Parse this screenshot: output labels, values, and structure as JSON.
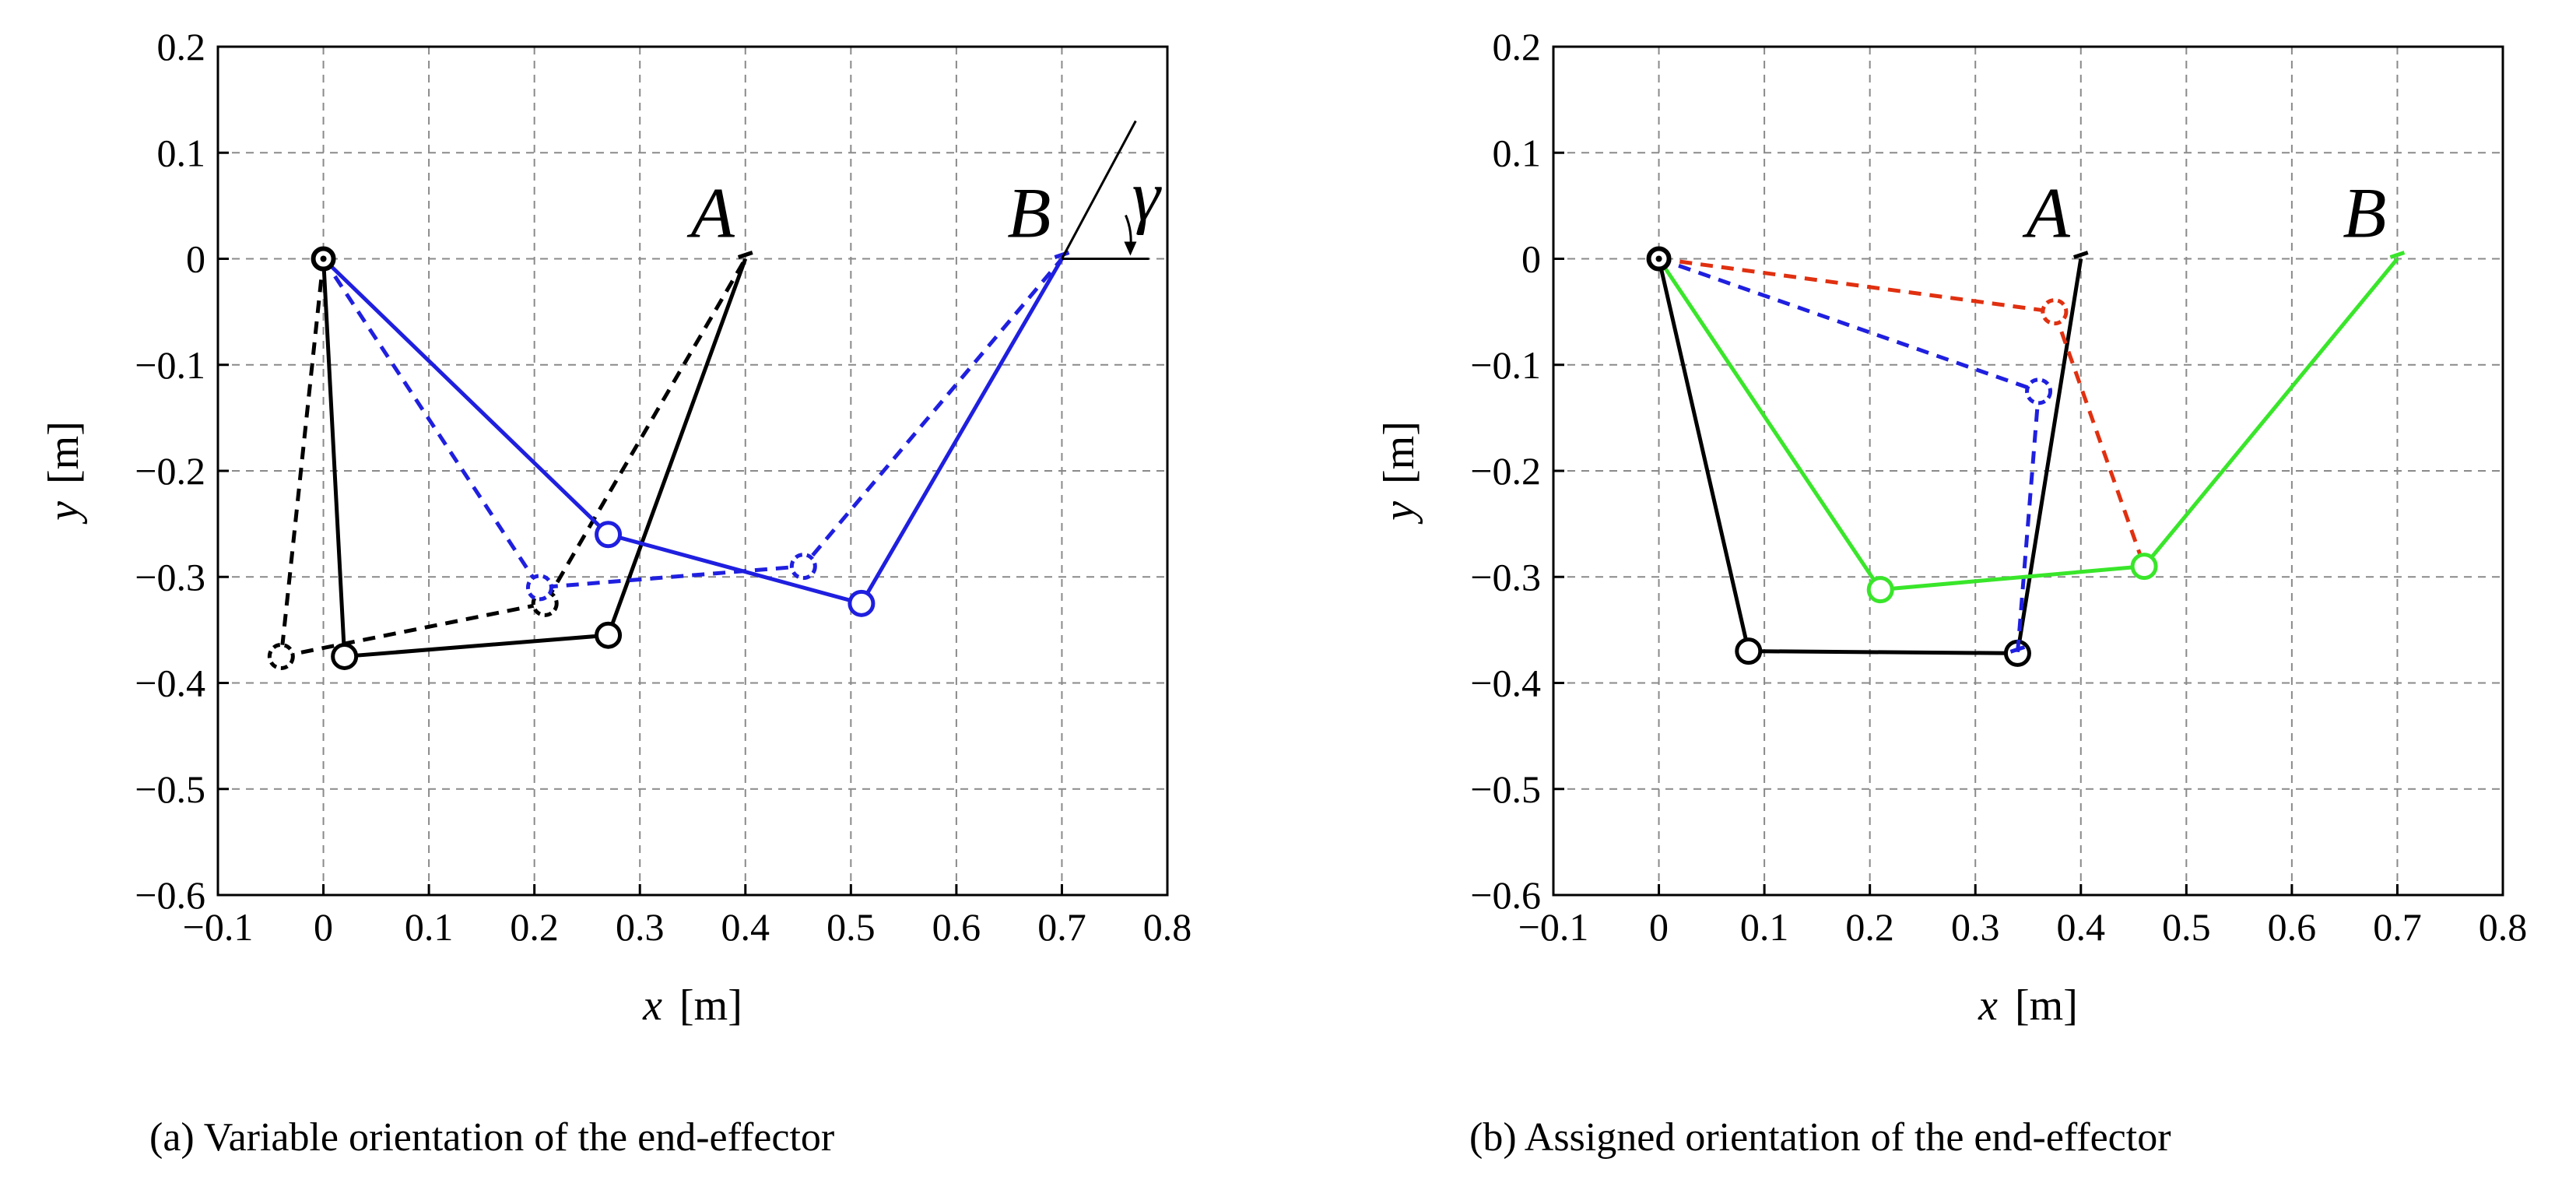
{
  "figure": {
    "caption_a": "(a)  Variable orientation of the end-effector",
    "caption_b": "(b)  Assigned orientation of the end-effector"
  },
  "chart_data": [
    {
      "type": "line",
      "panel": "a",
      "xlabel_var": "x",
      "xlabel_unit": "[m]",
      "ylabel_var": "y",
      "ylabel_unit": "[m]",
      "xlim": [
        -0.1,
        0.8
      ],
      "ylim": [
        -0.6,
        0.2
      ],
      "xticks": [
        -0.1,
        0,
        0.1,
        0.2,
        0.3,
        0.4,
        0.5,
        0.6,
        0.7,
        0.8
      ],
      "yticks": [
        -0.6,
        -0.5,
        -0.4,
        -0.3,
        -0.2,
        -0.1,
        0,
        0.1,
        0.2
      ],
      "xtick_labels": [
        "−0.1",
        "0",
        "0.1",
        "0.2",
        "0.3",
        "0.4",
        "0.5",
        "0.6",
        "0.7",
        "0.8"
      ],
      "ytick_labels": [
        "−0.6",
        "−0.5",
        "−0.4",
        "−0.3",
        "−0.2",
        "−0.1",
        "0",
        "0.1",
        "0.2"
      ],
      "grid": true,
      "series": [
        {
          "name": "black-dashed",
          "color": "#000000",
          "dashed": true,
          "x": [
            0,
            -0.04,
            0.21,
            0.4
          ],
          "y": [
            0,
            -0.375,
            -0.325,
            0
          ]
        },
        {
          "name": "black-solid",
          "color": "#000000",
          "dashed": false,
          "x": [
            0,
            0.02,
            0.27,
            0.4
          ],
          "y": [
            0,
            -0.375,
            -0.355,
            0
          ]
        },
        {
          "name": "blue-dashed",
          "color": "#1f1fe0",
          "dashed": true,
          "x": [
            0,
            0.205,
            0.455,
            0.7
          ],
          "y": [
            0,
            -0.31,
            -0.29,
            0
          ]
        },
        {
          "name": "blue-solid",
          "color": "#1f1fe0",
          "dashed": false,
          "x": [
            0,
            0.27,
            0.51,
            0.7
          ],
          "y": [
            0,
            -0.26,
            -0.325,
            0
          ]
        }
      ],
      "annotations": [
        {
          "text": "A",
          "x": 0.4,
          "y": 0
        },
        {
          "text": "B",
          "x": 0.7,
          "y": 0
        },
        {
          "text": "γ",
          "x": 0.7,
          "y": 0
        }
      ]
    },
    {
      "type": "line",
      "panel": "b",
      "xlabel_var": "x",
      "xlabel_unit": "[m]",
      "ylabel_var": "y",
      "ylabel_unit": "[m]",
      "xlim": [
        -0.1,
        0.8
      ],
      "ylim": [
        -0.6,
        0.2
      ],
      "xticks": [
        -0.1,
        0,
        0.1,
        0.2,
        0.3,
        0.4,
        0.5,
        0.6,
        0.7,
        0.8
      ],
      "yticks": [
        -0.6,
        -0.5,
        -0.4,
        -0.3,
        -0.2,
        -0.1,
        0,
        0.1,
        0.2
      ],
      "xtick_labels": [
        "−0.1",
        "0",
        "0.1",
        "0.2",
        "0.3",
        "0.4",
        "0.5",
        "0.6",
        "0.7",
        "0.8"
      ],
      "ytick_labels": [
        "−0.6",
        "−0.5",
        "−0.4",
        "−0.3",
        "−0.2",
        "−0.1",
        "0",
        "0.1",
        "0.2"
      ],
      "grid": true,
      "series": [
        {
          "name": "black-solid",
          "color": "#000000",
          "dashed": false,
          "x": [
            0,
            0.085,
            0.34,
            0.4
          ],
          "y": [
            0,
            -0.37,
            -0.372,
            0
          ]
        },
        {
          "name": "red-dashed",
          "color": "#e03010",
          "dashed": true,
          "x": [
            0,
            0.375,
            0.46
          ],
          "y": [
            0,
            -0.05,
            -0.29
          ]
        },
        {
          "name": "blue-dashed",
          "color": "#1f1fe0",
          "dashed": true,
          "x": [
            0,
            0.36,
            0.34
          ],
          "y": [
            0,
            -0.125,
            -0.372
          ]
        },
        {
          "name": "green-solid",
          "color": "#39e62a",
          "dashed": false,
          "x": [
            0,
            0.21,
            0.46,
            0.7
          ],
          "y": [
            0,
            -0.312,
            -0.29,
            0
          ]
        }
      ],
      "annotations": [
        {
          "text": "A",
          "x": 0.4,
          "y": 0
        },
        {
          "text": "B",
          "x": 0.7,
          "y": 0
        }
      ]
    }
  ]
}
